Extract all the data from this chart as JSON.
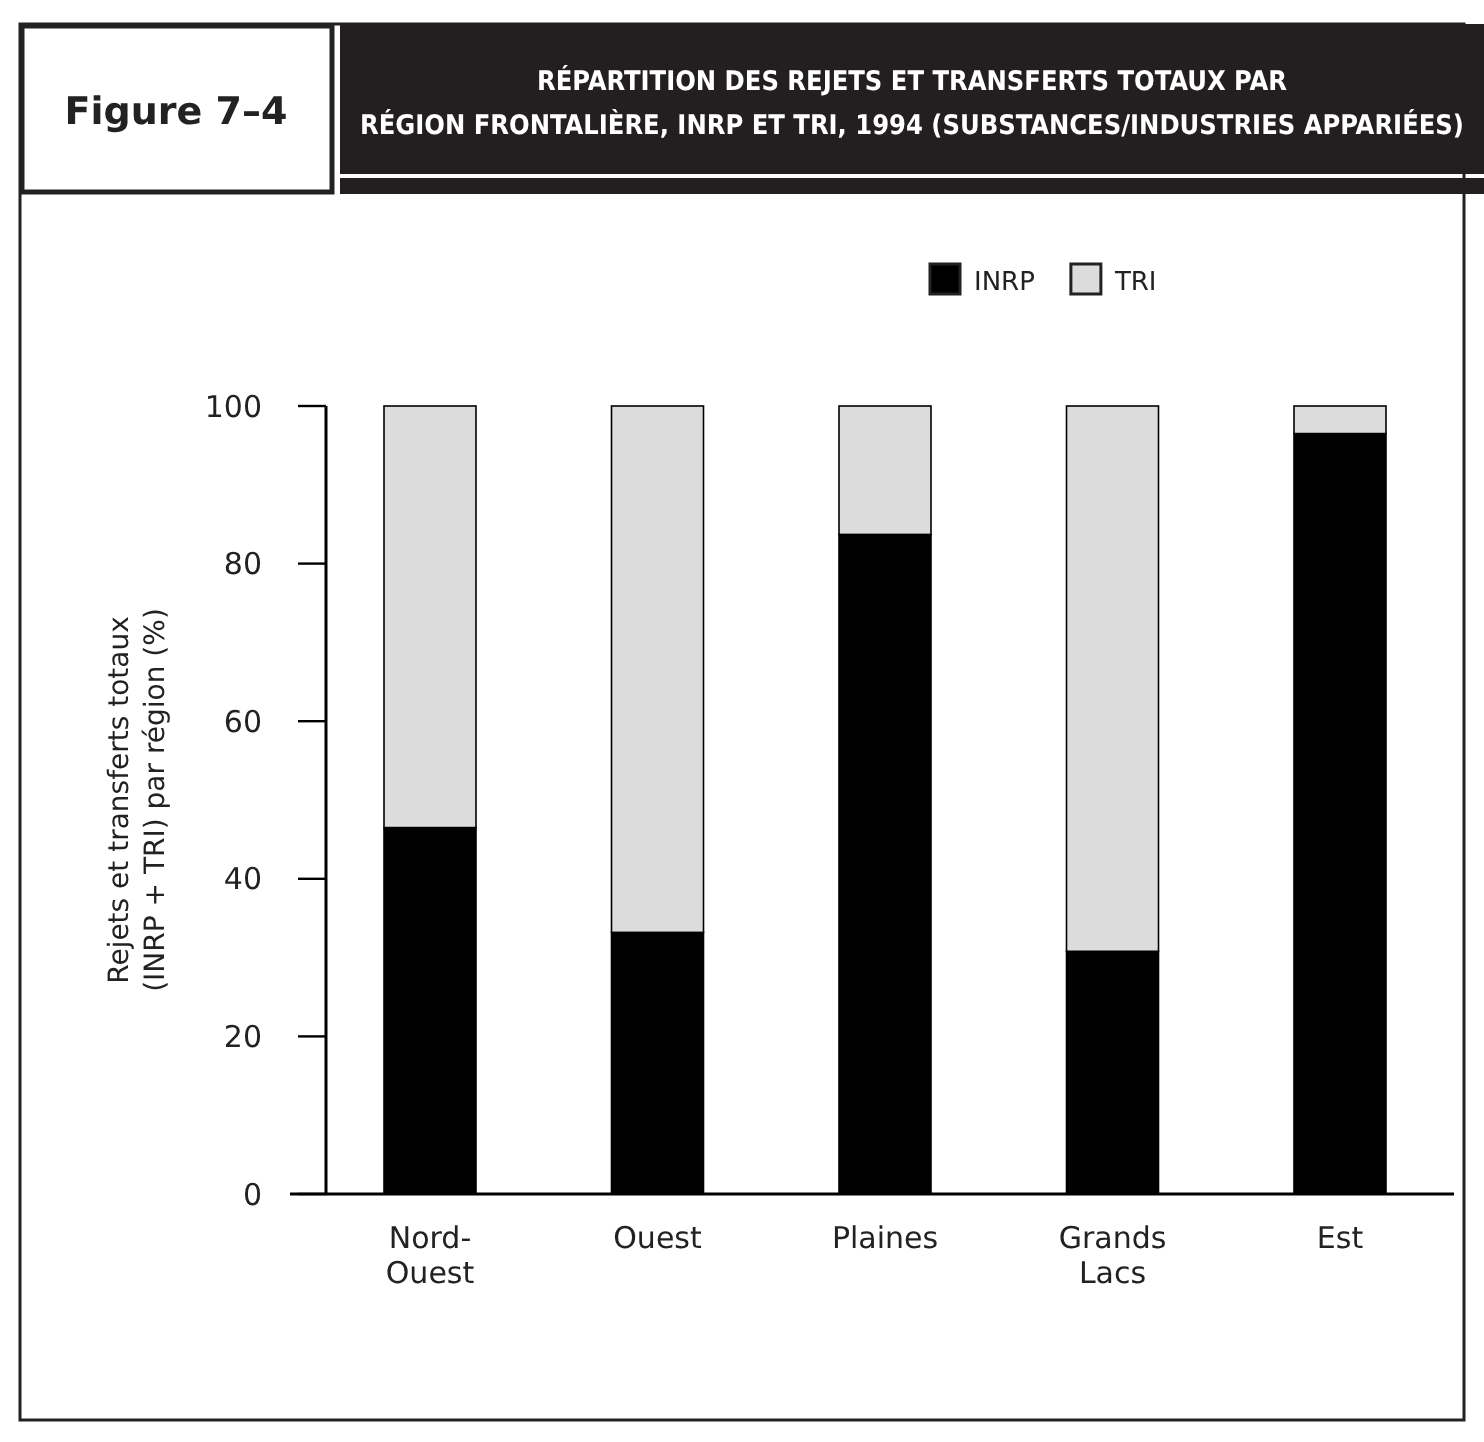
{
  "chart_data": {
    "type": "bar",
    "title": "RÉPARTITION DES REJETS ET TRANSFERTS TOTAUX PAR RÉGION FRONTALIÈRE, INRP ET TRI, 1994 (SUBSTANCES/INDUSTRIES APPARIÉES)",
    "subtitle": "Figure 7–4",
    "ylabel": "Rejets et transferts totaux\n(INRP + TRI) par région (%)",
    "categories": [
      "Nord-Ouest",
      "Ouest",
      "Plaines",
      "Grands Lacs",
      "Est"
    ],
    "stacked": true,
    "series": [
      {
        "name": "INRP",
        "color": "#000000",
        "values": [
          46.5,
          33.2,
          83.7,
          30.8,
          96.5
        ]
      },
      {
        "name": "TRI",
        "color": "#dcdcdc",
        "values": [
          53.5,
          66.8,
          16.3,
          69.2,
          3.5
        ]
      }
    ],
    "ylim": [
      0,
      100
    ],
    "yticks": [
      0,
      20,
      40,
      60,
      80,
      100
    ],
    "grid": false,
    "legend": "top"
  }
}
